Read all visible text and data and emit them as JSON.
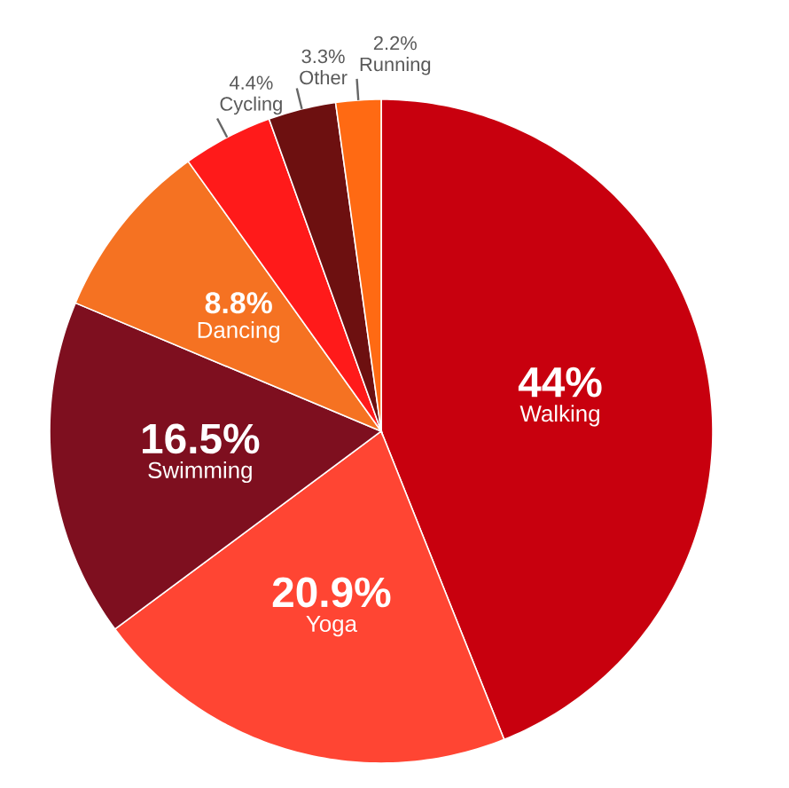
{
  "chart_data": {
    "type": "pie",
    "categories": [
      "Walking",
      "Yoga",
      "Swimming",
      "Dancing",
      "Cycling",
      "Other",
      "Running"
    ],
    "values": [
      44,
      20.9,
      16.5,
      8.8,
      4.4,
      3.3,
      2.2
    ],
    "value_labels": [
      "44%",
      "20.9%",
      "16.5%",
      "8.8%",
      "4.4%",
      "3.3%",
      "2.2%"
    ],
    "colors": [
      "#C8000E",
      "#FF4533",
      "#7E0F1F",
      "#F57222",
      "#FF1A1A",
      "#6D1010",
      "#FF6A13"
    ]
  }
}
